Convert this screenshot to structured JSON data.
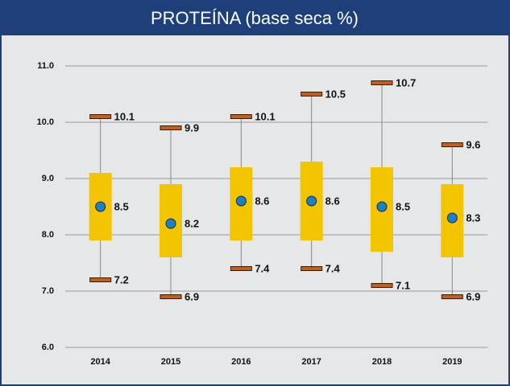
{
  "chart_data": {
    "type": "box",
    "title": "PROTEÍNA (base seca %)",
    "categories": [
      "2014",
      "2015",
      "2016",
      "2017",
      "2018",
      "2019"
    ],
    "min": [
      7.2,
      6.9,
      7.4,
      7.4,
      7.1,
      6.9
    ],
    "q1": [
      7.9,
      7.6,
      7.9,
      7.9,
      7.7,
      7.6
    ],
    "q3": [
      9.1,
      8.9,
      9.2,
      9.3,
      9.2,
      8.9
    ],
    "max": [
      10.1,
      9.9,
      10.1,
      10.5,
      10.7,
      9.6
    ],
    "mean": [
      8.5,
      8.2,
      8.6,
      8.6,
      8.5,
      8.3
    ],
    "box_color": "#f2c500",
    "cap_color": "#c0601a",
    "mean_color": "#1f7fc4",
    "ylim": [
      6,
      11
    ],
    "yticks": [
      {
        "value": 6,
        "label": "6.0"
      },
      {
        "value": 7,
        "label": "7.0"
      },
      {
        "value": 8,
        "label": "8.0"
      },
      {
        "value": 9,
        "label": "9.0"
      },
      {
        "value": 10,
        "label": "10.0"
      },
      {
        "value": 11,
        "label": "11.0"
      }
    ],
    "grid": true
  }
}
